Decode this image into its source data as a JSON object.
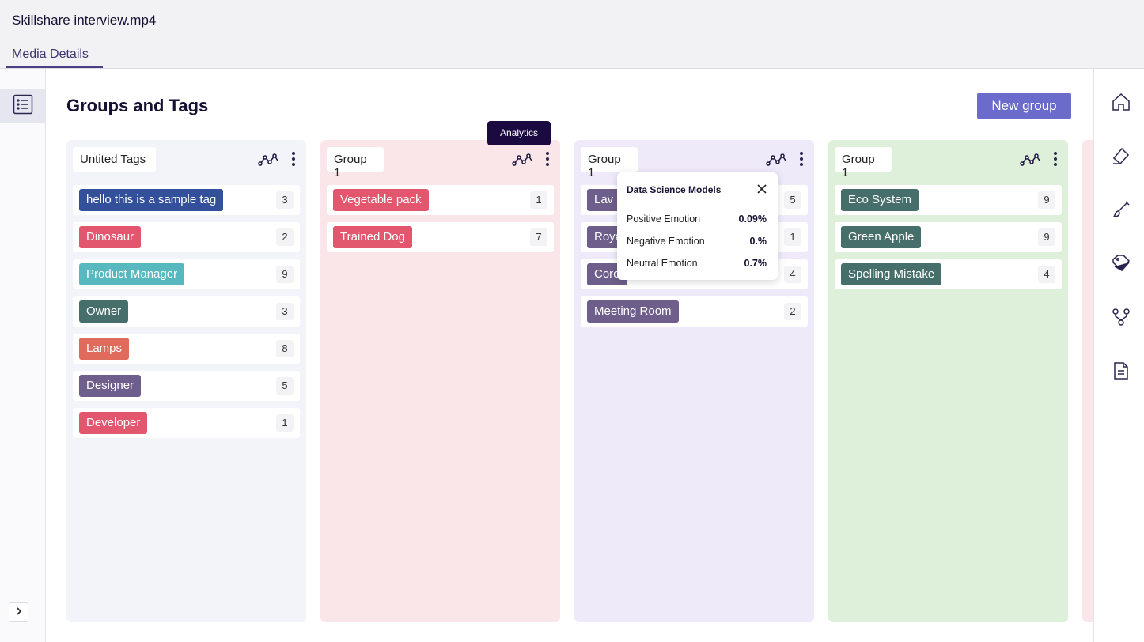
{
  "header": {
    "file_title": "Skillshare interview.mp4",
    "tab_label": "Media Details"
  },
  "page": {
    "title": "Groups and Tags",
    "new_group_label": "New group"
  },
  "tooltip": {
    "text": "Analytics"
  },
  "popover": {
    "title": "Data Science Models",
    "rows": [
      {
        "label": "Positive Emotion",
        "value": "0.09%"
      },
      {
        "label": "Negative Emotion",
        "value": "0.%"
      },
      {
        "label": "Neutral Emotion",
        "value": "0.7%"
      }
    ]
  },
  "colors": {
    "accent": "#6b6bcb",
    "tooltip_bg": "#1a0a3f"
  },
  "columns": [
    {
      "name": "Untited Tags",
      "bg": "#f3f4fa",
      "tags": [
        {
          "label": "hello this is a sample tag",
          "count": "3",
          "color": "#33519b"
        },
        {
          "label": "Dinosaur",
          "count": "2",
          "color": "#e2566e"
        },
        {
          "label": "Product Manager",
          "count": "9",
          "color": "#57b9bf"
        },
        {
          "label": "Owner",
          "count": "3",
          "color": "#466e6b"
        },
        {
          "label": "Lamps",
          "count": "8",
          "color": "#e06b5c"
        },
        {
          "label": "Designer",
          "count": "5",
          "color": "#6e5e8b"
        },
        {
          "label": "Developer",
          "count": "1",
          "color": "#e2566e"
        }
      ]
    },
    {
      "name": "Group 1",
      "bg": "#fae6e9",
      "tags": [
        {
          "label": "Vegetable pack",
          "count": "1",
          "color": "#e2566e"
        },
        {
          "label": "Trained Dog",
          "count": "7",
          "color": "#e2566e"
        }
      ]
    },
    {
      "name": "Group 1",
      "bg": "#efeafa",
      "tags": [
        {
          "label": "Lav",
          "count": "5",
          "color": "#6e5e8b"
        },
        {
          "label": "Roya",
          "count": "1",
          "color": "#6e5e8b"
        },
        {
          "label": "Coro",
          "count": "4",
          "color": "#6e5e8b"
        },
        {
          "label": "Meeting Room",
          "count": "2",
          "color": "#6e5e8b"
        }
      ]
    },
    {
      "name": "Group 1",
      "bg": "#dff0da",
      "tags": [
        {
          "label": "Eco System",
          "count": "9",
          "color": "#466e6b"
        },
        {
          "label": "Green Apple",
          "count": "9",
          "color": "#466e6b"
        },
        {
          "label": "Spelling Mistake",
          "count": "4",
          "color": "#466e6b"
        }
      ]
    }
  ],
  "right_rail_icons": [
    "home-icon",
    "eraser-icon",
    "brush-icon",
    "tag-icon",
    "flow-icon",
    "document-icon"
  ]
}
